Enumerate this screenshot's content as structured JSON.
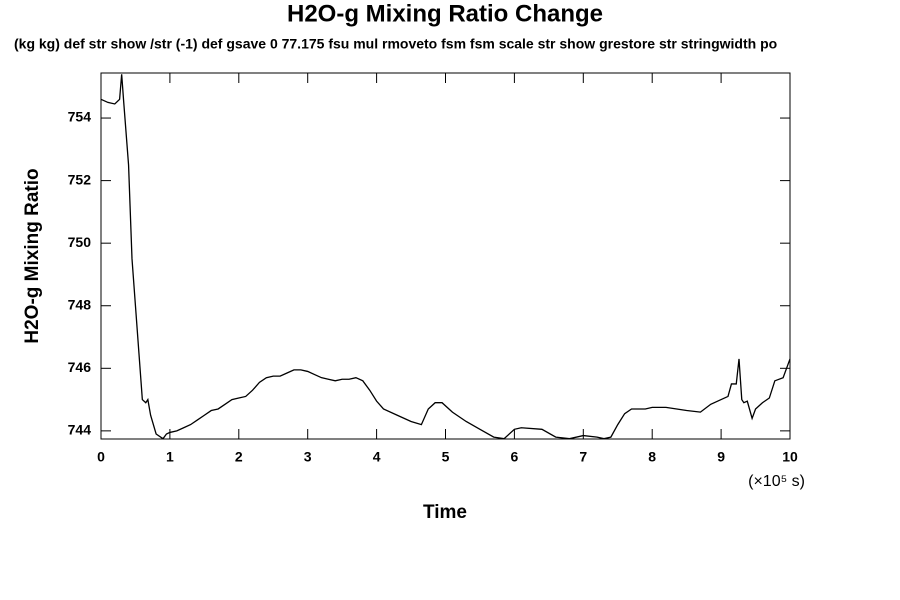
{
  "chart_data": {
    "type": "line",
    "title": "H2O-g Mixing Ratio Change",
    "subtitle": "(kg kg) def str show /str (-1) def gsave 0 77.175 fsu mul rmoveto fsm fsm scale str show grestore str stringwidth po",
    "ylabel": "H2O-g Mixing Ratio",
    "xlabel": "Time",
    "xunit": "(×10⁵ s)",
    "xlim": [
      0,
      10
    ],
    "xticks": [
      0,
      1,
      2,
      3,
      4,
      5,
      6,
      7,
      8,
      9,
      10
    ],
    "ylim": [
      743.74,
      755.44
    ],
    "yticks": [
      744,
      746,
      748,
      750,
      752,
      754
    ],
    "color": "#000000",
    "x": [
      0,
      0.1,
      0.2,
      0.27,
      0.3,
      0.33,
      0.4,
      0.45,
      0.5,
      0.55,
      0.6,
      0.65,
      0.68,
      0.72,
      0.8,
      0.9,
      0.95,
      1.0,
      1.1,
      1.2,
      1.3,
      1.4,
      1.5,
      1.6,
      1.7,
      1.8,
      1.9,
      2.0,
      2.1,
      2.2,
      2.3,
      2.4,
      2.5,
      2.6,
      2.7,
      2.8,
      2.9,
      3.0,
      3.1,
      3.2,
      3.3,
      3.4,
      3.5,
      3.6,
      3.7,
      3.8,
      3.9,
      4.0,
      4.1,
      4.3,
      4.5,
      4.65,
      4.75,
      4.85,
      4.95,
      5.1,
      5.3,
      5.5,
      5.7,
      5.85,
      6.0,
      6.1,
      6.4,
      6.6,
      6.8,
      7.0,
      7.2,
      7.3,
      7.4,
      7.5,
      7.6,
      7.7,
      7.9,
      8.0,
      8.2,
      8.5,
      8.7,
      8.85,
      9.0,
      9.1,
      9.15,
      9.22,
      9.26,
      9.3,
      9.33,
      9.38,
      9.45,
      9.5,
      9.6,
      9.7,
      9.78,
      9.9,
      10.0
    ],
    "values": [
      754.6,
      754.5,
      754.45,
      754.6,
      755.4,
      754.5,
      752.5,
      749.5,
      748,
      746.5,
      745,
      744.9,
      745,
      744.5,
      743.9,
      743.75,
      743.9,
      743.95,
      744,
      744.1,
      744.2,
      744.35,
      744.5,
      744.65,
      744.7,
      744.85,
      745.0,
      745.05,
      745.1,
      745.3,
      745.55,
      745.7,
      745.75,
      745.75,
      745.85,
      745.95,
      745.95,
      745.9,
      745.8,
      745.7,
      745.65,
      745.6,
      745.65,
      745.65,
      745.7,
      745.6,
      745.3,
      744.95,
      744.7,
      744.5,
      744.3,
      744.2,
      744.7,
      744.9,
      744.9,
      744.6,
      744.3,
      744.05,
      743.8,
      743.75,
      744.05,
      744.1,
      744.05,
      743.8,
      743.75,
      743.85,
      743.8,
      743.75,
      743.8,
      744.2,
      744.55,
      744.7,
      744.7,
      744.75,
      744.75,
      744.65,
      744.6,
      744.85,
      745.0,
      745.1,
      745.5,
      745.5,
      746.3,
      745.0,
      744.9,
      744.95,
      744.4,
      744.7,
      744.9,
      745.05,
      745.6,
      745.7,
      746.3
    ]
  }
}
